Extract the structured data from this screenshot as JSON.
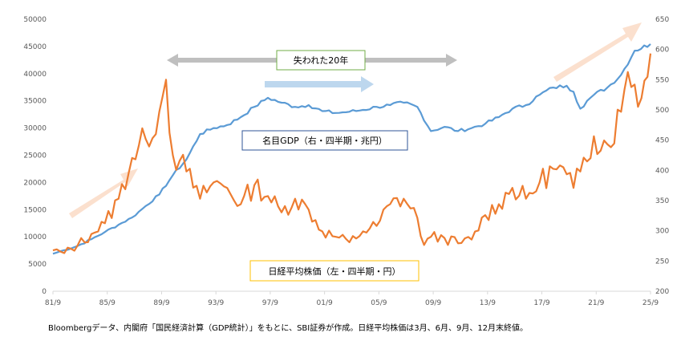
{
  "chart_data": {
    "type": "line",
    "title": "",
    "xlabel": "",
    "ylabel": "",
    "x_ticks": [
      "81/9",
      "85/9",
      "89/9",
      "93/9",
      "97/9",
      "01/9",
      "05/9",
      "09/9",
      "13/9",
      "17/9",
      "21/9",
      "25/9"
    ],
    "x_range": [
      1981.67,
      2025.67
    ],
    "left_axis": {
      "range": [
        0,
        50000
      ],
      "ticks": [
        0,
        5000,
        10000,
        15000,
        20000,
        25000,
        30000,
        35000,
        40000,
        45000,
        50000
      ]
    },
    "right_axis": {
      "range": [
        200,
        650
      ],
      "ticks": [
        200,
        250,
        300,
        350,
        400,
        450,
        500,
        550,
        600,
        650
      ]
    },
    "grid": false,
    "series": [
      {
        "name": "名目GDP（右・四半期・兆円）",
        "axis": "right",
        "color": "#5B9BD5",
        "points": [
          [
            1981.67,
            262
          ],
          [
            1982.5,
            268
          ],
          [
            1983.5,
            275
          ],
          [
            1984.5,
            286
          ],
          [
            1985.5,
            298
          ],
          [
            1986.5,
            310
          ],
          [
            1987.5,
            322
          ],
          [
            1988.5,
            341
          ],
          [
            1989.5,
            360
          ],
          [
            1990.5,
            392
          ],
          [
            1991.5,
            418
          ],
          [
            1992.5,
            460
          ],
          [
            1993.5,
            470
          ],
          [
            1994.5,
            475
          ],
          [
            1995.5,
            488
          ],
          [
            1996.5,
            505
          ],
          [
            1997.5,
            520
          ],
          [
            1998.5,
            512
          ],
          [
            1999.5,
            505
          ],
          [
            2000.5,
            508
          ],
          [
            2001.5,
            498
          ],
          [
            2002.5,
            495
          ],
          [
            2003.5,
            497
          ],
          [
            2004.5,
            500
          ],
          [
            2005.5,
            505
          ],
          [
            2006.5,
            508
          ],
          [
            2007.5,
            512
          ],
          [
            2008.5,
            505
          ],
          [
            2009.5,
            465
          ],
          [
            2010.5,
            472
          ],
          [
            2011.5,
            465
          ],
          [
            2012.5,
            470
          ],
          [
            2013.5,
            477
          ],
          [
            2014.5,
            488
          ],
          [
            2015.5,
            502
          ],
          [
            2016.5,
            508
          ],
          [
            2017.5,
            525
          ],
          [
            2018.5,
            537
          ],
          [
            2019.5,
            540
          ],
          [
            2020.0,
            530
          ],
          [
            2020.5,
            502
          ],
          [
            2021.0,
            515
          ],
          [
            2021.5,
            525
          ],
          [
            2022.5,
            537
          ],
          [
            2023.5,
            558
          ],
          [
            2024.5,
            598
          ],
          [
            2025.67,
            609
          ]
        ]
      },
      {
        "name": "日経平均株価（左・四半期・円）",
        "axis": "left",
        "color": "#ED7D31",
        "points": [
          [
            1981.67,
            7500
          ],
          [
            1982.5,
            7000
          ],
          [
            1983.5,
            8500
          ],
          [
            1984.5,
            10500
          ],
          [
            1985.5,
            12500
          ],
          [
            1986.5,
            17000
          ],
          [
            1987.5,
            24500
          ],
          [
            1988.5,
            28000
          ],
          [
            1989.5,
            33000
          ],
          [
            1990.0,
            38900
          ],
          [
            1990.5,
            25000
          ],
          [
            1991.0,
            24000
          ],
          [
            1991.5,
            22000
          ],
          [
            1992.5,
            17000
          ],
          [
            1993.5,
            20000
          ],
          [
            1994.5,
            19000
          ],
          [
            1995.5,
            16000
          ],
          [
            1996.5,
            19500
          ],
          [
            1997.5,
            17500
          ],
          [
            1998.5,
            14500
          ],
          [
            1999.5,
            17000
          ],
          [
            2000.5,
            15000
          ],
          [
            2001.5,
            11000
          ],
          [
            2002.5,
            10000
          ],
          [
            2003.5,
            9000
          ],
          [
            2004.5,
            11000
          ],
          [
            2005.5,
            12000
          ],
          [
            2006.5,
            16000
          ],
          [
            2007.5,
            17000
          ],
          [
            2008.5,
            13500
          ],
          [
            2009.0,
            8500
          ],
          [
            2009.5,
            10000
          ],
          [
            2010.5,
            9800
          ],
          [
            2011.5,
            8800
          ],
          [
            2012.5,
            9500
          ],
          [
            2013.5,
            14000
          ],
          [
            2014.5,
            16000
          ],
          [
            2015.5,
            19000
          ],
          [
            2016.5,
            17000
          ],
          [
            2017.5,
            20000
          ],
          [
            2018.5,
            22500
          ],
          [
            2019.5,
            21500
          ],
          [
            2020.0,
            19000
          ],
          [
            2020.5,
            22000
          ],
          [
            2021.5,
            28500
          ],
          [
            2022.5,
            27000
          ],
          [
            2023.5,
            33000
          ],
          [
            2024.0,
            40300
          ],
          [
            2024.5,
            38000
          ],
          [
            2025.0,
            35500
          ],
          [
            2025.67,
            43700
          ]
        ]
      }
    ],
    "annotations": {
      "lost_decades": "失われた20年"
    },
    "footnote": "Bloombergデータ、内閣府「国民経済計算（GDP統計）」をもとに、SBI証券が作成。日経平均株価は3月、6月、9月、12月末終値。"
  }
}
